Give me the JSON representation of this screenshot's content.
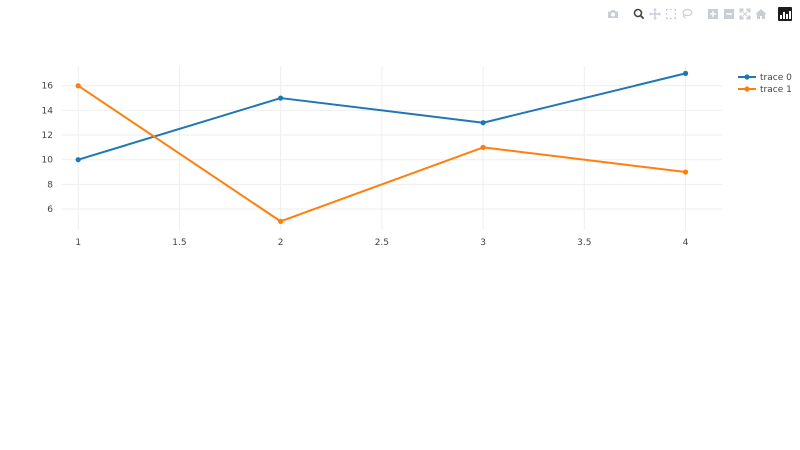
{
  "modebar": {
    "buttons": [
      {
        "name": "camera-icon",
        "group": 0
      },
      {
        "name": "zoom-icon",
        "group": 1,
        "active": true
      },
      {
        "name": "pan-icon",
        "group": 1
      },
      {
        "name": "box-select-icon",
        "group": 1
      },
      {
        "name": "lasso-select-icon",
        "group": 1
      },
      {
        "name": "zoom-in-icon",
        "group": 2
      },
      {
        "name": "zoom-out-icon",
        "group": 2
      },
      {
        "name": "autoscale-icon",
        "group": 2
      },
      {
        "name": "reset-axes-icon",
        "group": 2
      }
    ],
    "logo": "plotly-logo-icon"
  },
  "chart_data": {
    "type": "line",
    "x_ticks": [
      "1",
      "1.5",
      "2",
      "2.5",
      "3",
      "3.5",
      "4"
    ],
    "y_ticks": [
      "6",
      "8",
      "10",
      "12",
      "14",
      "16"
    ],
    "xlim": [
      0.92,
      4.18
    ],
    "ylim": [
      4.3,
      17.6
    ],
    "grid": true,
    "legend_placement": "top-right",
    "series": [
      {
        "name": "trace 0",
        "color": "#1f77b4",
        "x": [
          1,
          2,
          3,
          4
        ],
        "y": [
          10,
          15,
          13,
          17
        ]
      },
      {
        "name": "trace 1",
        "color": "#ff7f0e",
        "x": [
          1,
          2,
          3,
          4
        ],
        "y": [
          16,
          5,
          11,
          9
        ]
      }
    ]
  }
}
